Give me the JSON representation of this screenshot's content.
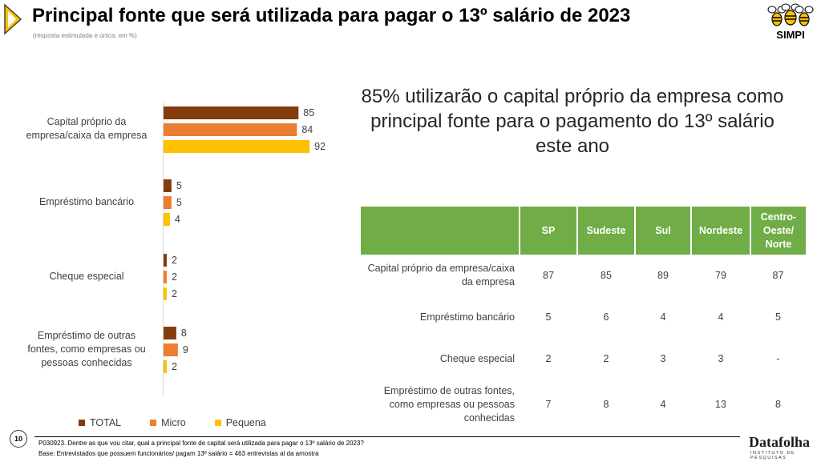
{
  "header": {
    "title": "Principal fonte que será utilizada para pagar o 13º salário de 2023",
    "subtitle": "(resposta estimulada e única, em %)"
  },
  "logo": {
    "text": "SIMPI",
    "icon": "bee-logo-icon"
  },
  "headline": "85% utilizarão o capital próprio da empresa como principal fonte para o pagamento do 13º salário este ano",
  "colors": {
    "total": "#843c0c",
    "micro": "#ed7d31",
    "pequena": "#ffc000",
    "table_header": "#70ad47"
  },
  "chart_data": {
    "type": "bar",
    "orientation": "horizontal",
    "categories": [
      "Capital próprio da empresa/caixa da empresa",
      "Empréstimo bancário",
      "Cheque especial",
      "Empréstimo de outras fontes, como empresas ou pessoas conhecidas"
    ],
    "series": [
      {
        "name": "TOTAL",
        "values": [
          85,
          5,
          2,
          8
        ]
      },
      {
        "name": "Micro",
        "values": [
          84,
          5,
          2,
          9
        ]
      },
      {
        "name": "Pequena",
        "values": [
          92,
          4,
          2,
          2
        ]
      }
    ],
    "title": "",
    "xlabel": "",
    "ylabel": "",
    "xlim": [
      0,
      100
    ],
    "legend_position": "bottom",
    "grid": false
  },
  "table": {
    "headers": [
      "",
      "SP",
      "Sudeste",
      "Sul",
      "Nordeste",
      "Centro-Oeste/ Norte"
    ],
    "rows": [
      {
        "label": "Capital próprio da empresa/caixa da empresa",
        "values": [
          "87",
          "85",
          "89",
          "79",
          "87"
        ]
      },
      {
        "label": "Empréstimo bancário",
        "values": [
          "5",
          "6",
          "4",
          "4",
          "5"
        ]
      },
      {
        "label": "Cheque especial",
        "values": [
          "2",
          "2",
          "3",
          "3",
          "-"
        ]
      },
      {
        "label": "Empréstimo de outras fontes, como empresas ou pessoas conhecidas",
        "values": [
          "7",
          "8",
          "4",
          "13",
          "8"
        ]
      }
    ]
  },
  "footer": {
    "page_number": "10",
    "question": "P030923. Dentre as que vou citar, qual a principal fonte de capital será utilizada para pagar o 13º salário de 2023?",
    "base": "Base: Entrevistados que possuem funcionários/ pagam 13º salário = 463 entrevistas al da amostra",
    "brand": "Datafolha",
    "brand_sub": "INSTITUTO DE PESQUISAS"
  }
}
